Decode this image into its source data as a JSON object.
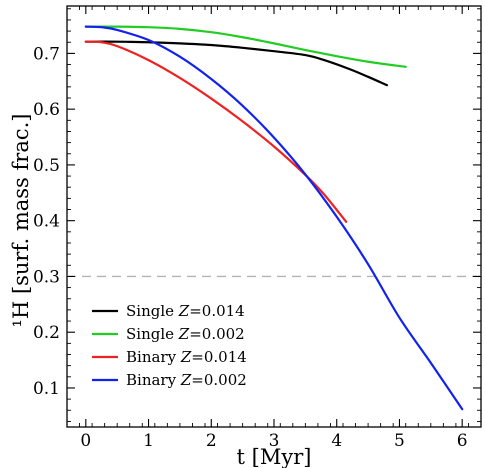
{
  "chart_data": {
    "type": "line",
    "xlabel": "t [Myr]",
    "ylabel": "¹H [surf. mass frac.]",
    "xlim": [
      -0.3,
      6.3
    ],
    "ylim": [
      0.03,
      0.785
    ],
    "xticks": [
      0,
      1,
      2,
      3,
      4,
      5,
      6
    ],
    "yticks": [
      0.1,
      0.2,
      0.3,
      0.4,
      0.5,
      0.6,
      0.7
    ],
    "xtick_labels": [
      "0",
      "1",
      "2",
      "3",
      "4",
      "5",
      "6"
    ],
    "ytick_labels": [
      "0.1",
      "0.2",
      "0.3",
      "0.4",
      "0.5",
      "0.6",
      "0.7"
    ],
    "grid": false,
    "legend_position": "lower-left",
    "reference_line": {
      "y": 0.3,
      "style": "dashed",
      "color": "#b3b3b3"
    },
    "series": [
      {
        "name": "Single Z=0.014",
        "label_prefix": "Single ",
        "label_var": "Z",
        "label_value": "=0.014",
        "color": "#000000",
        "x": [
          0,
          0.5,
          1.0,
          1.5,
          2.0,
          2.5,
          3.0,
          3.5,
          3.8,
          4.2,
          4.5,
          4.8
        ],
        "y": [
          0.721,
          0.721,
          0.72,
          0.718,
          0.715,
          0.71,
          0.704,
          0.697,
          0.688,
          0.672,
          0.658,
          0.643
        ]
      },
      {
        "name": "Single Z=0.002",
        "label_prefix": "Single ",
        "label_var": "Z",
        "label_value": "=0.002",
        "color": "#22cc22",
        "x": [
          0,
          0.5,
          1.0,
          1.5,
          2.0,
          2.5,
          3.0,
          3.5,
          4.0,
          4.5,
          5.1
        ],
        "y": [
          0.748,
          0.748,
          0.747,
          0.744,
          0.738,
          0.729,
          0.718,
          0.706,
          0.695,
          0.685,
          0.676
        ]
      },
      {
        "name": "Binary Z=0.014",
        "label_prefix": "Binary ",
        "label_var": "Z",
        "label_value": "=0.014",
        "color": "#ee2222",
        "x": [
          0,
          0.25,
          0.5,
          1.0,
          1.5,
          2.0,
          2.5,
          3.0,
          3.5,
          3.8,
          4.15
        ],
        "y": [
          0.721,
          0.72,
          0.713,
          0.688,
          0.656,
          0.619,
          0.578,
          0.533,
          0.482,
          0.447,
          0.398
        ]
      },
      {
        "name": "Binary Z=0.002",
        "label_prefix": "Binary ",
        "label_var": "Z",
        "label_value": "=0.002",
        "color": "#1122ee",
        "x": [
          0,
          0.25,
          0.5,
          1.0,
          1.5,
          2.0,
          2.5,
          3.0,
          3.5,
          4.0,
          4.5,
          5.0,
          5.5,
          6.0
        ],
        "y": [
          0.748,
          0.747,
          0.742,
          0.724,
          0.694,
          0.654,
          0.606,
          0.549,
          0.483,
          0.407,
          0.322,
          0.226,
          0.145,
          0.062
        ]
      }
    ]
  }
}
